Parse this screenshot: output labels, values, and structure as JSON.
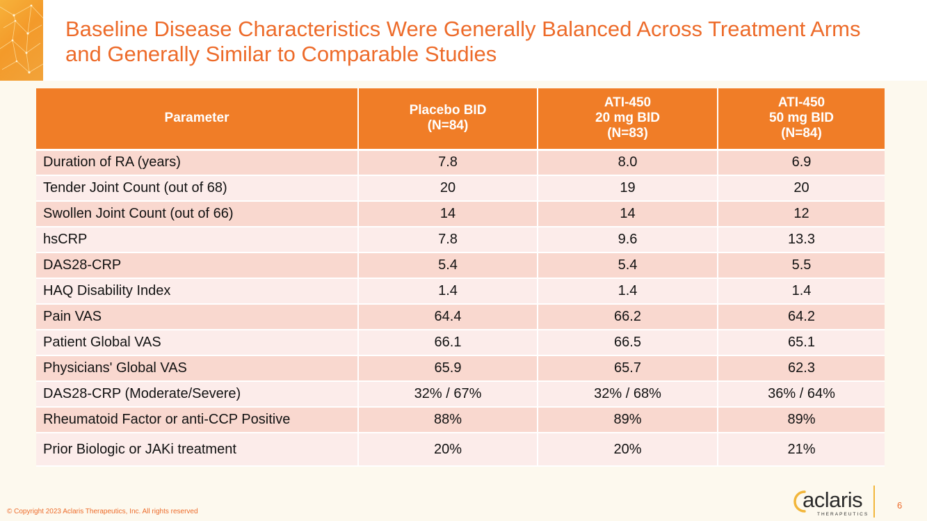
{
  "slide": {
    "title": "Baseline Disease Characteristics Were Generally Balanced Across Treatment Arms and Generally Similar to Comparable Studies",
    "page_number": "6",
    "copyright": "© Copyright 2023 Aclaris Therapeutics, Inc. All rights reserved"
  },
  "logo": {
    "name": "aclaris",
    "subtitle": "THERAPEUTICS"
  },
  "colors": {
    "accent": "#ed6b2a",
    "header_bg": "#f07d27",
    "row_odd": "#f9d8cf",
    "row_even": "#fcecea",
    "gold": "#f2b63a"
  },
  "table": {
    "headers": [
      {
        "lines": [
          "Parameter"
        ]
      },
      {
        "lines": [
          "Placebo BID",
          "(N=84)"
        ]
      },
      {
        "lines": [
          "ATI-450",
          "20 mg BID",
          "(N=83)"
        ]
      },
      {
        "lines": [
          "ATI-450",
          "50 mg BID",
          "(N=84)"
        ]
      }
    ],
    "rows": [
      [
        "Duration of RA (years)",
        "7.8",
        "8.0",
        "6.9"
      ],
      [
        "Tender Joint Count (out of 68)",
        "20",
        "19",
        "20"
      ],
      [
        "Swollen Joint Count (out of 66)",
        "14",
        "14",
        "12"
      ],
      [
        "hsCRP",
        "7.8",
        "9.6",
        "13.3"
      ],
      [
        "DAS28-CRP",
        "5.4",
        "5.4",
        "5.5"
      ],
      [
        "HAQ Disability Index",
        "1.4",
        "1.4",
        "1.4"
      ],
      [
        "Pain VAS",
        "64.4",
        "66.2",
        "64.2"
      ],
      [
        "Patient Global VAS",
        "66.1",
        "66.5",
        "65.1"
      ],
      [
        "Physicians' Global VAS",
        "65.9",
        "65.7",
        "62.3"
      ],
      [
        "DAS28-CRP (Moderate/Severe)",
        "32% / 67%",
        "32% / 68%",
        "36% / 64%"
      ],
      [
        "Rheumatoid Factor or anti-CCP Positive",
        "88%",
        "89%",
        "89%"
      ],
      [
        "Prior Biologic or JAKi treatment",
        "20%",
        "20%",
        "21%"
      ]
    ]
  }
}
